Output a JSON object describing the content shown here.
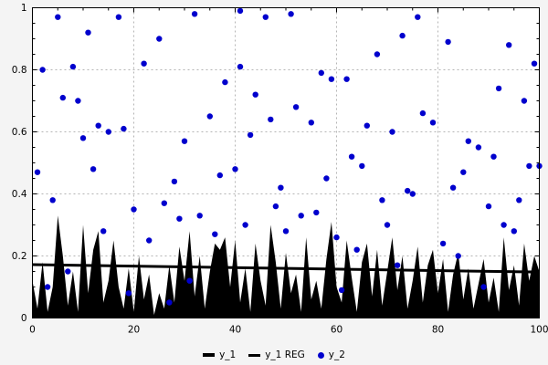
{
  "figure": {
    "background": "#f4f4f4",
    "plot_background": "#ffffff",
    "border_color": "#000000",
    "grid_color": "#b4b4b4"
  },
  "legend": {
    "position": "bottom-center",
    "items": [
      {
        "label": "y_1",
        "type": "area",
        "color": "#000000"
      },
      {
        "label": "y_1 REG",
        "type": "line",
        "color": "#000000"
      },
      {
        "label": "y_2",
        "type": "point",
        "color": "#0000cd"
      }
    ]
  },
  "chart_data": {
    "type": "mixed",
    "title": "",
    "xlabel": "",
    "ylabel": "",
    "x_range": [
      0,
      100
    ],
    "y_range": [
      0,
      1
    ],
    "x_ticks": [
      "0",
      "20",
      "40",
      "60",
      "80",
      "100"
    ],
    "y_ticks": [
      "0",
      "0.2",
      "0.4",
      "0.6",
      "0.8",
      "1"
    ],
    "grid": true,
    "grid_style": "dashed",
    "legend_position": "bottom-center",
    "series": [
      {
        "name": "y_1",
        "type": "area",
        "color": "#000000",
        "x_start": 0,
        "x_step": 1,
        "values": [
          0.12,
          0.03,
          0.18,
          0.02,
          0.1,
          0.33,
          0.2,
          0.04,
          0.15,
          0.02,
          0.3,
          0.08,
          0.22,
          0.28,
          0.05,
          0.12,
          0.25,
          0.1,
          0.03,
          0.16,
          0.02,
          0.2,
          0.06,
          0.14,
          0.01,
          0.08,
          0.03,
          0.17,
          0.05,
          0.23,
          0.12,
          0.28,
          0.07,
          0.2,
          0.03,
          0.15,
          0.24,
          0.22,
          0.26,
          0.1,
          0.25,
          0.05,
          0.16,
          0.02,
          0.24,
          0.12,
          0.04,
          0.3,
          0.18,
          0.03,
          0.21,
          0.08,
          0.14,
          0.02,
          0.26,
          0.06,
          0.12,
          0.03,
          0.19,
          0.31,
          0.1,
          0.05,
          0.25,
          0.13,
          0.02,
          0.18,
          0.24,
          0.07,
          0.22,
          0.04,
          0.15,
          0.26,
          0.09,
          0.2,
          0.03,
          0.12,
          0.23,
          0.05,
          0.17,
          0.22,
          0.08,
          0.19,
          0.02,
          0.14,
          0.21,
          0.06,
          0.16,
          0.03,
          0.11,
          0.19,
          0.05,
          0.13,
          0.02,
          0.26,
          0.09,
          0.17,
          0.04,
          0.24,
          0.12,
          0.2,
          0.15
        ]
      },
      {
        "name": "y_1 REG",
        "type": "line",
        "color": "#000000",
        "width": 3,
        "x": [
          0,
          100
        ],
        "y": [
          0.172,
          0.148
        ]
      },
      {
        "name": "y_2",
        "type": "scatter",
        "color": "#0000cd",
        "point_radius": 3.2,
        "points": [
          [
            5,
            0.97
          ],
          [
            17,
            0.97
          ],
          [
            32,
            0.98
          ],
          [
            41,
            0.99
          ],
          [
            46,
            0.97
          ],
          [
            51,
            0.98
          ],
          [
            76,
            0.97
          ],
          [
            11,
            0.92
          ],
          [
            25,
            0.9
          ],
          [
            73,
            0.91
          ],
          [
            82,
            0.89
          ],
          [
            94,
            0.88
          ],
          [
            2,
            0.8
          ],
          [
            8,
            0.81
          ],
          [
            22,
            0.82
          ],
          [
            41,
            0.81
          ],
          [
            57,
            0.79
          ],
          [
            62,
            0.77
          ],
          [
            68,
            0.85
          ],
          [
            99,
            0.82
          ],
          [
            6,
            0.71
          ],
          [
            9,
            0.7
          ],
          [
            38,
            0.76
          ],
          [
            44,
            0.72
          ],
          [
            59,
            0.77
          ],
          [
            92,
            0.74
          ],
          [
            97,
            0.7
          ],
          [
            13,
            0.62
          ],
          [
            15,
            0.6
          ],
          [
            35,
            0.65
          ],
          [
            47,
            0.64
          ],
          [
            52,
            0.68
          ],
          [
            66,
            0.62
          ],
          [
            71,
            0.6
          ],
          [
            77,
            0.66
          ],
          [
            86,
            0.57
          ],
          [
            88,
            0.55
          ],
          [
            10,
            0.58
          ],
          [
            18,
            0.61
          ],
          [
            30,
            0.57
          ],
          [
            43,
            0.59
          ],
          [
            55,
            0.63
          ],
          [
            63,
            0.52
          ],
          [
            79,
            0.63
          ],
          [
            91,
            0.52
          ],
          [
            1,
            0.47
          ],
          [
            12,
            0.48
          ],
          [
            28,
            0.44
          ],
          [
            37,
            0.46
          ],
          [
            40,
            0.48
          ],
          [
            49,
            0.42
          ],
          [
            58,
            0.45
          ],
          [
            65,
            0.49
          ],
          [
            74,
            0.41
          ],
          [
            85,
            0.47
          ],
          [
            100,
            0.49
          ],
          [
            4,
            0.38
          ],
          [
            20,
            0.35
          ],
          [
            26,
            0.37
          ],
          [
            33,
            0.33
          ],
          [
            48,
            0.36
          ],
          [
            56,
            0.34
          ],
          [
            69,
            0.38
          ],
          [
            75,
            0.4
          ],
          [
            83,
            0.42
          ],
          [
            90,
            0.36
          ],
          [
            96,
            0.38
          ],
          [
            7,
            0.15
          ],
          [
            14,
            0.28
          ],
          [
            23,
            0.25
          ],
          [
            29,
            0.32
          ],
          [
            36,
            0.27
          ],
          [
            42,
            0.3
          ],
          [
            53,
            0.33
          ],
          [
            60,
            0.26
          ],
          [
            64,
            0.22
          ],
          [
            72,
            0.17
          ],
          [
            81,
            0.24
          ],
          [
            89,
            0.1
          ],
          [
            95,
            0.28
          ],
          [
            3,
            0.1
          ],
          [
            19,
            0.08
          ],
          [
            27,
            0.05
          ],
          [
            31,
            0.12
          ],
          [
            50,
            0.28
          ],
          [
            61,
            0.09
          ],
          [
            70,
            0.3
          ],
          [
            84,
            0.2
          ],
          [
            93,
            0.3
          ],
          [
            98,
            0.49
          ]
        ]
      }
    ]
  }
}
